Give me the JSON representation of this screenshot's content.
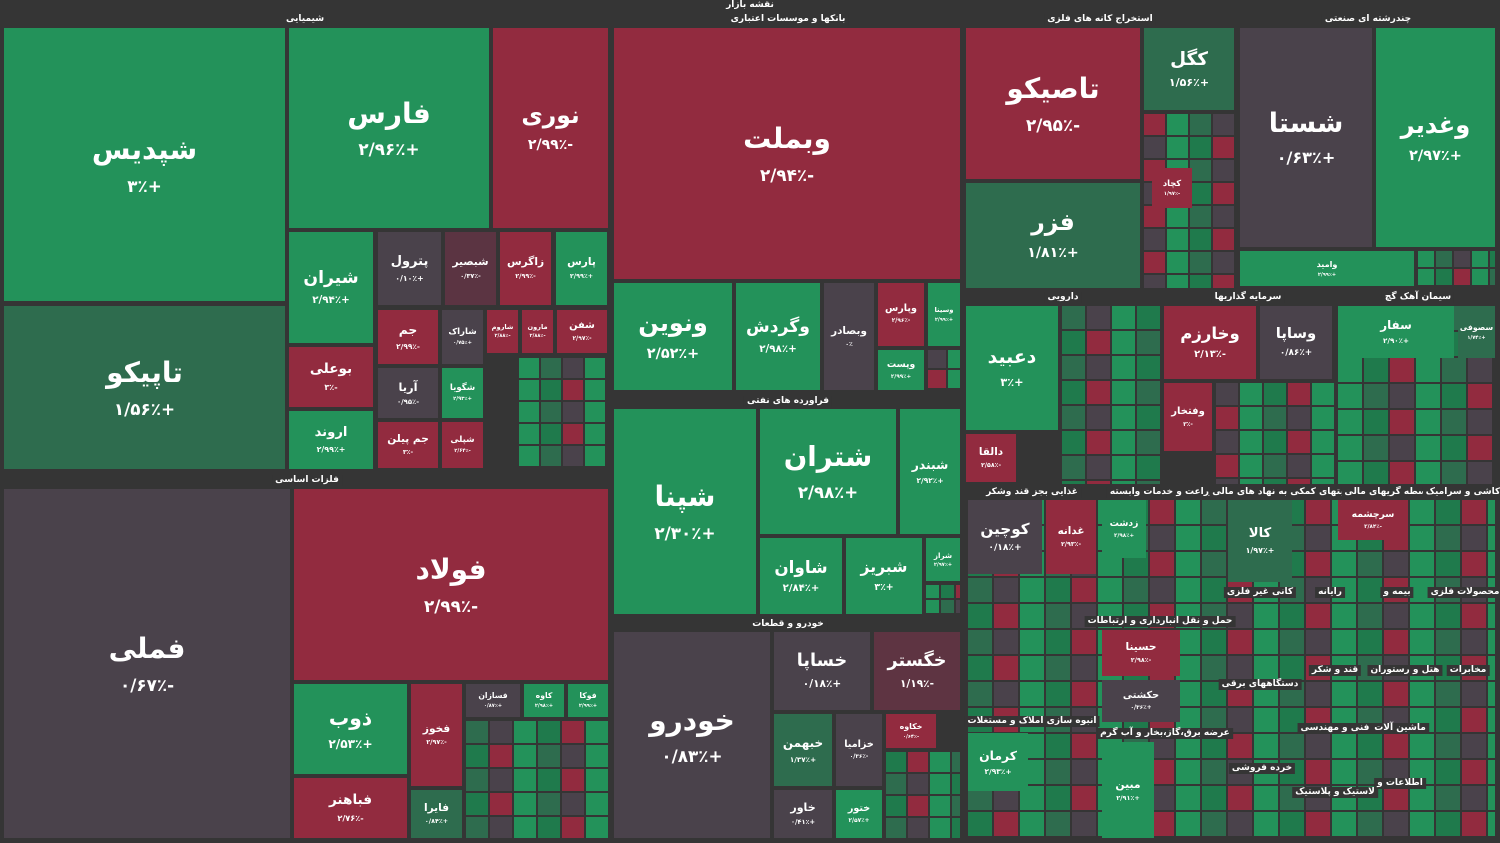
{
  "header": {
    "title": "نقشه بازار"
  },
  "sectors": [
    {
      "title": "شیمیایی",
      "tiles": [
        {
          "name": "شپدیس",
          "change": "+۳٪",
          "color": "#23925a"
        },
        {
          "name": "تاپیکو",
          "change": "+۱/۵۶٪",
          "color": "#2e6c4e"
        },
        {
          "name": "فارس",
          "change": "+۲/۹۶٪",
          "color": "#23925a"
        },
        {
          "name": "نوری",
          "change": "-۲/۹۹٪",
          "color": "#922b3f"
        },
        {
          "name": "شیران",
          "change": "+۲/۹۴٪",
          "color": "#23925a"
        },
        {
          "name": "بوعلی",
          "change": "-۳٪",
          "color": "#922b3f"
        },
        {
          "name": "اروند",
          "change": "+۲/۹۹٪",
          "color": "#23925a"
        },
        {
          "name": "پترول",
          "change": "+۰/۱۰٪",
          "color": "#4a424b"
        },
        {
          "name": "شبصیر",
          "change": "-۰/۳۷٪",
          "color": "#5b3442"
        },
        {
          "name": "زاگرس",
          "change": "-۲/۹۹٪",
          "color": "#922b3f"
        },
        {
          "name": "پارس",
          "change": "+۲/۹۹٪",
          "color": "#23925a"
        },
        {
          "name": "جم",
          "change": "-۲/۹۹٪",
          "color": "#922b3f"
        },
        {
          "name": "شاراک",
          "change": "+۰/۷۵٪",
          "color": "#4a424b"
        },
        {
          "name": "شاروم",
          "change": "-۲/۸۸٪",
          "color": "#922b3f"
        },
        {
          "name": "مارون",
          "change": "-۲/۸۸٪",
          "color": "#922b3f"
        },
        {
          "name": "شفن",
          "change": "-۲/۹۷٪",
          "color": "#922b3f"
        },
        {
          "name": "آریا",
          "change": "-۰/۹۵٪",
          "color": "#4a424b"
        },
        {
          "name": "شگویا",
          "change": "+۲/۹۳٪",
          "color": "#23925a"
        },
        {
          "name": "جم پیلن",
          "change": "-۳٪",
          "color": "#922b3f"
        },
        {
          "name": "شپلی",
          "change": "-۲/۶۴٪",
          "color": "#922b3f"
        }
      ]
    },
    {
      "title": "فلزات اساسی",
      "tiles": [
        {
          "name": "فملی",
          "change": "-۰/۶۷٪",
          "color": "#4a424b"
        },
        {
          "name": "فولاد",
          "change": "-۲/۹۹٪",
          "color": "#922b3f"
        },
        {
          "name": "ذوب",
          "change": "+۲/۵۳٪",
          "color": "#23925a"
        },
        {
          "name": "فباهنر",
          "change": "-۲/۷۶٪",
          "color": "#922b3f"
        },
        {
          "name": "فخوز",
          "change": "-۲/۹۷٪",
          "color": "#922b3f"
        },
        {
          "name": "فایرا",
          "change": "+۰/۸۴٪",
          "color": "#2e6c4e"
        },
        {
          "name": "فسازان",
          "change": "+۰/۸۷٪",
          "color": "#4a424b"
        },
        {
          "name": "کاوه",
          "change": "+۲/۹۸٪",
          "color": "#23925a"
        },
        {
          "name": "فوکا",
          "change": "+۲/۹۹٪",
          "color": "#23925a"
        }
      ]
    },
    {
      "title": "بانکها و موسسات اعتباری",
      "tiles": [
        {
          "name": "وبملت",
          "change": "-۲/۹۴٪",
          "color": "#922b3f"
        },
        {
          "name": "ونوین",
          "change": "+۲/۵۲٪",
          "color": "#23925a"
        },
        {
          "name": "وگردش",
          "change": "+۲/۹۸٪",
          "color": "#23925a"
        },
        {
          "name": "وبصادر",
          "change": "۰٪",
          "color": "#4a424b"
        },
        {
          "name": "وپارس",
          "change": "-۲/۹۶٪",
          "color": "#922b3f"
        },
        {
          "name": "وسینا",
          "change": "+۲/۹۹٪",
          "color": "#23925a"
        },
        {
          "name": "وپست",
          "change": "+۲/۹۹٪",
          "color": "#23925a"
        }
      ]
    },
    {
      "title": "فراورده های نفتی",
      "tiles": [
        {
          "name": "شپنا",
          "change": "+۲/۳۰٪",
          "color": "#23925a"
        },
        {
          "name": "شتران",
          "change": "+۲/۹۸٪",
          "color": "#23925a"
        },
        {
          "name": "شبندر",
          "change": "+۲/۹۲٪",
          "color": "#23925a"
        },
        {
          "name": "شاوان",
          "change": "+۲/۸۴٪",
          "color": "#23925a"
        },
        {
          "name": "شبریز",
          "change": "+۳٪",
          "color": "#23925a"
        },
        {
          "name": "شراز",
          "change": "+۲/۹۷٪",
          "color": "#23925a"
        }
      ]
    },
    {
      "title": "خودرو و قطعات",
      "tiles": [
        {
          "name": "خودرو",
          "change": "+۰/۸۳٪",
          "color": "#4a424b"
        },
        {
          "name": "خساپا",
          "change": "+۰/۱۸٪",
          "color": "#4a424b"
        },
        {
          "name": "خگستر",
          "change": "-۱/۱۹٪",
          "color": "#5e3442"
        },
        {
          "name": "خبهمن",
          "change": "+۱/۳۷٪",
          "color": "#2e6c4e"
        },
        {
          "name": "خزامیا",
          "change": "-۰/۳۶٪",
          "color": "#4a424b"
        },
        {
          "name": "خکاوه",
          "change": "-۰/۶۴٪",
          "color": "#922b3f"
        },
        {
          "name": "خاور",
          "change": "+۰/۴۱٪",
          "color": "#4a424b"
        },
        {
          "name": "ختور",
          "change": "+۲/۵۷٪",
          "color": "#23925a"
        }
      ]
    },
    {
      "title": "استخراج کانه های فلزی",
      "tiles": [
        {
          "name": "تاصیکو",
          "change": "-۲/۹۵٪",
          "color": "#922b3f"
        },
        {
          "name": "فزر",
          "change": "+۱/۸۱٪",
          "color": "#2e6c4e"
        },
        {
          "name": "کگل",
          "change": "+۱/۵۶٪",
          "color": "#2e6c4e"
        },
        {
          "name": "کچاد",
          "change": "-۱/۹۷٪",
          "color": "#922b3f"
        }
      ]
    },
    {
      "title": "چندرشته ای صنعتی",
      "tiles": [
        {
          "name": "شستا",
          "change": "+۰/۶۳٪",
          "color": "#4a424b"
        },
        {
          "name": "وغدیر",
          "change": "+۲/۹۷٪",
          "color": "#23925a"
        },
        {
          "name": "وامید",
          "change": "+۲/۹۹٪",
          "color": "#23925a"
        }
      ]
    },
    {
      "title": "دارویی",
      "tiles": [
        {
          "name": "دعبید",
          "change": "+۳٪",
          "color": "#23925a"
        },
        {
          "name": "دالقا",
          "change": "-۲/۵۸٪",
          "color": "#922b3f"
        }
      ]
    },
    {
      "title": "سرمایه گذاریها",
      "tiles": [
        {
          "name": "وخارزم",
          "change": "-۲/۱۳٪",
          "color": "#922b3f"
        },
        {
          "name": "وساپا",
          "change": "+۰/۸۶٪",
          "color": "#4a424b"
        },
        {
          "name": "وفتخار",
          "change": "-۳٪",
          "color": "#922b3f"
        }
      ]
    },
    {
      "title": "سیمان آهک گچ",
      "tiles": [
        {
          "name": "سفار",
          "change": "+۲/۹۰٪",
          "color": "#23925a"
        },
        {
          "name": "سصوفی",
          "change": "+۱/۷۴٪",
          "color": "#2e6c4e"
        }
      ]
    },
    {
      "title": "غذایی بجز قند وشکر",
      "tiles": [
        {
          "name": "کوچین",
          "change": "+۰/۱۸٪",
          "color": "#4a424b"
        },
        {
          "name": "غدانه",
          "change": "-۲/۹۳٪",
          "color": "#922b3f"
        }
      ]
    },
    {
      "title": "زراعت و خدمات وابسته",
      "tiles": [
        {
          "name": "زدشت",
          "change": "+۲/۹۸٪",
          "color": "#23925a"
        }
      ]
    },
    {
      "title": "فعالیتهای کمکی به نهاد های مالی",
      "tiles": [
        {
          "name": "کالا",
          "change": "+۱/۹۷٪",
          "color": "#2e6c4e"
        }
      ]
    },
    {
      "title": "واسطه گریهای مالی",
      "tiles": [
        {
          "name": "سرچشمه",
          "change": "-۲/۸۴٪",
          "color": "#922b3f"
        }
      ]
    },
    {
      "title": "کاشی و سرامیک",
      "tiles": []
    },
    {
      "title": "حمل و نقل انبارداری و ارتباطات",
      "tiles": [
        {
          "name": "حسینا",
          "change": "-۲/۹۸٪",
          "color": "#922b3f"
        },
        {
          "name": "حکشتی",
          "change": "+۰/۳۶٪",
          "color": "#4a424b"
        }
      ]
    },
    {
      "title": "انبوه سازی املاک و مستغلات",
      "tiles": [
        {
          "name": "کرمان",
          "change": "+۲/۹۳٪",
          "color": "#23925a"
        }
      ]
    },
    {
      "title": "عرضه برق،گاز،بخار و آب گرم",
      "tiles": [
        {
          "name": "مبین",
          "change": "+۲/۹۱٪",
          "color": "#23925a"
        }
      ]
    },
    {
      "title": "کانی غیر فلزی",
      "tiles": []
    },
    {
      "title": "رایانه",
      "tiles": []
    },
    {
      "title": "بیمه و",
      "tiles": []
    },
    {
      "title": "محصولات فلزی",
      "tiles": []
    },
    {
      "title": "قند و شکر",
      "tiles": []
    },
    {
      "title": "هتل و رستوران",
      "tiles": []
    },
    {
      "title": "مخابرات",
      "tiles": []
    },
    {
      "title": "دستگاههای برقی",
      "tiles": []
    },
    {
      "title": "فنی و مهندسی",
      "tiles": []
    },
    {
      "title": "ماشین آلات",
      "tiles": []
    },
    {
      "title": "خرده فروشی",
      "tiles": []
    },
    {
      "title": "لاستیک و پلاستیک",
      "tiles": []
    },
    {
      "title": "اطلاعات و",
      "tiles": []
    }
  ]
}
